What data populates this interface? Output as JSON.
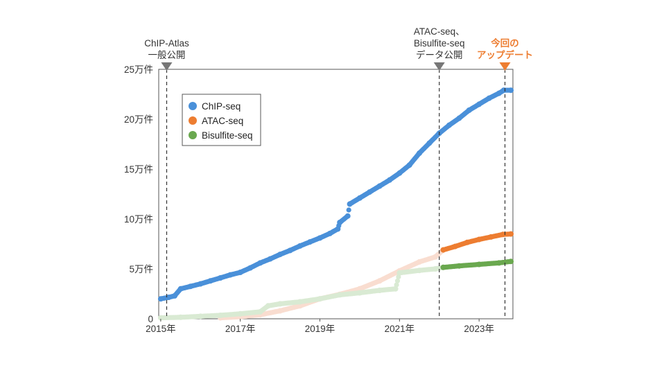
{
  "chart_data": {
    "type": "scatter",
    "x_tick_labels": [
      "2015年",
      "2017年",
      "2019年",
      "2021年",
      "2023年"
    ],
    "x_ticks": [
      2015,
      2017,
      2019,
      2021,
      2023
    ],
    "xlim": [
      2014.95,
      2023.85
    ],
    "y_tick_labels": [
      "0",
      "5万件",
      "10万件",
      "15万件",
      "20万件",
      "25万件"
    ],
    "y_ticks": [
      0,
      50000,
      100000,
      150000,
      200000,
      250000
    ],
    "ylim": [
      0,
      250000
    ],
    "grid": false,
    "legend_position": "upper-left",
    "series": [
      {
        "name": "ChIP-seq",
        "color": "#4a90d9",
        "points": [
          [
            2015.0,
            20000
          ],
          [
            2015.2,
            21500
          ],
          [
            2015.35,
            23000
          ],
          [
            2015.5,
            30000
          ],
          [
            2015.75,
            32500
          ],
          [
            2016.0,
            35000
          ],
          [
            2016.25,
            38000
          ],
          [
            2016.5,
            41000
          ],
          [
            2016.75,
            44000
          ],
          [
            2017.0,
            46500
          ],
          [
            2017.25,
            51000
          ],
          [
            2017.5,
            56000
          ],
          [
            2017.75,
            60000
          ],
          [
            2018.0,
            64500
          ],
          [
            2018.25,
            68500
          ],
          [
            2018.5,
            73000
          ],
          [
            2018.75,
            77000
          ],
          [
            2019.0,
            81000
          ],
          [
            2019.25,
            85500
          ],
          [
            2019.45,
            90000
          ],
          [
            2019.5,
            96500
          ],
          [
            2019.7,
            103000
          ],
          [
            2019.75,
            115000
          ],
          [
            2020.0,
            121000
          ],
          [
            2020.25,
            127000
          ],
          [
            2020.5,
            133000
          ],
          [
            2020.75,
            139000
          ],
          [
            2021.0,
            146000
          ],
          [
            2021.25,
            154000
          ],
          [
            2021.5,
            166000
          ],
          [
            2021.75,
            176000
          ],
          [
            2022.0,
            186000
          ],
          [
            2022.25,
            194000
          ],
          [
            2022.5,
            201000
          ],
          [
            2022.75,
            209000
          ],
          [
            2023.0,
            215000
          ],
          [
            2023.25,
            221000
          ],
          [
            2023.5,
            226000
          ],
          [
            2023.62,
            229000
          ],
          [
            2023.8,
            229000
          ]
        ]
      },
      {
        "name": "ATAC-seq",
        "color": "#ed7d31",
        "pre_release_color": "#f9ddd0",
        "release_x": 2022.1,
        "points": [
          [
            2016.5,
            1000
          ],
          [
            2017.0,
            2000
          ],
          [
            2017.5,
            4000
          ],
          [
            2018.0,
            8000
          ],
          [
            2018.5,
            13000
          ],
          [
            2019.0,
            20000
          ],
          [
            2019.5,
            24500
          ],
          [
            2020.0,
            30000
          ],
          [
            2020.5,
            38000
          ],
          [
            2021.0,
            48000
          ],
          [
            2021.5,
            57000
          ],
          [
            2021.9,
            62000
          ],
          [
            2022.1,
            69000
          ],
          [
            2022.4,
            72500
          ],
          [
            2022.7,
            76500
          ],
          [
            2023.0,
            79500
          ],
          [
            2023.3,
            82000
          ],
          [
            2023.6,
            84500
          ],
          [
            2023.8,
            85000
          ]
        ]
      },
      {
        "name": "Bisulfite-seq",
        "color": "#6aa84f",
        "pre_release_color": "#d9ead3",
        "release_x": 2022.1,
        "points": [
          [
            2015.0,
            1000
          ],
          [
            2015.5,
            1500
          ],
          [
            2016.0,
            2500
          ],
          [
            2016.5,
            3500
          ],
          [
            2017.0,
            5000
          ],
          [
            2017.5,
            7000
          ],
          [
            2017.7,
            13000
          ],
          [
            2018.0,
            15000
          ],
          [
            2018.5,
            17000
          ],
          [
            2019.0,
            20000
          ],
          [
            2019.5,
            24000
          ],
          [
            2020.0,
            26000
          ],
          [
            2020.5,
            28500
          ],
          [
            2020.9,
            30000
          ],
          [
            2021.0,
            46000
          ],
          [
            2021.5,
            48500
          ],
          [
            2021.9,
            50000
          ],
          [
            2022.1,
            51500
          ],
          [
            2022.5,
            53000
          ],
          [
            2023.0,
            54500
          ],
          [
            2023.5,
            56000
          ],
          [
            2023.8,
            57500
          ]
        ]
      }
    ],
    "annotations": [
      {
        "x": 2015.15,
        "lines": [
          "ChIP-Atlas",
          "一般公開"
        ],
        "highlight": false
      },
      {
        "x": 2022.0,
        "lines": [
          "ATAC-seq、",
          "Bisulfite-seq",
          "データ公開"
        ],
        "highlight": false
      },
      {
        "x": 2023.65,
        "lines": [
          "今回の",
          "アップデート"
        ],
        "highlight": true
      }
    ]
  }
}
